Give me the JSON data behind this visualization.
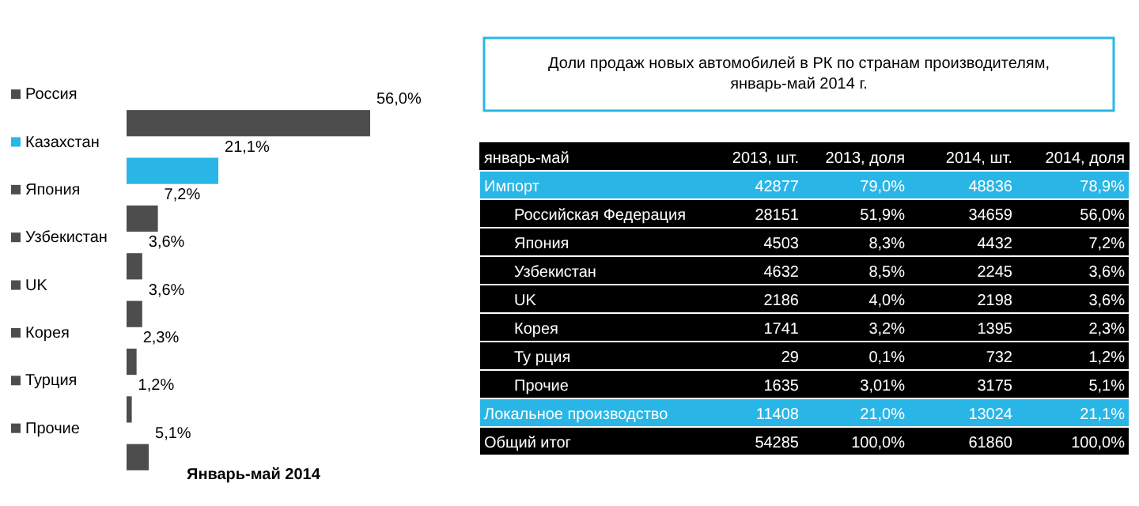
{
  "chart_data": [
    {
      "type": "bar",
      "orientation": "horizontal",
      "categories": [
        "Россия",
        "Казахстан",
        "Япония",
        "Узбекистан",
        "UK",
        "Корея",
        "Турция",
        "Прочие"
      ],
      "values": [
        56.0,
        21.1,
        7.2,
        3.6,
        3.6,
        2.3,
        1.2,
        5.1
      ],
      "colors": [
        "#4d4d4d",
        "#29b6e6",
        "#4d4d4d",
        "#4d4d4d",
        "#4d4d4d",
        "#4d4d4d",
        "#4d4d4d",
        "#4d4d4d"
      ],
      "value_labels": [
        "56,0%",
        "21,1%",
        "7,2%",
        "3,6%",
        "3,6%",
        "2,3%",
        "1,2%",
        "5,1%"
      ],
      "annotations": [
        "Январь-май 2014"
      ]
    },
    {
      "type": "other",
      "title": "Доли продаж  новых  автомобилей в РК по странам производителям, январь-май 2014 г.",
      "categories": [
        "январь-май",
        "2013, шт.",
        "2013, доля",
        "2014, шт.",
        "2014, доля"
      ],
      "y_categories": [
        "Импорт",
        "Российская Федерация",
        "Япония",
        "Узбекистан",
        "UK",
        "Корея",
        "Ту рция",
        "Прочие",
        "Локальное производство",
        "Общий итог"
      ],
      "colors": [
        "#000000",
        "#29b6e6",
        null,
        null,
        null,
        null,
        null,
        null,
        null,
        "#29b6e6",
        "#000000"
      ],
      "cell_labels": [
        [
          "42877",
          "79,0%",
          "48836",
          "78,9%"
        ],
        [
          "28151",
          "51,9%",
          "34659",
          "56,0%"
        ],
        [
          "4503",
          "8,3%",
          "4432",
          "7,2%"
        ],
        [
          "4632",
          "8,5%",
          "2245",
          "3,6%"
        ],
        [
          "2186",
          "4,0%",
          "2198",
          "3,6%"
        ],
        [
          "1741",
          "3,2%",
          "1395",
          "2,3%"
        ],
        [
          "29",
          "0,1%",
          "732",
          "1,2%"
        ],
        [
          "1635",
          "3,01%",
          "3175",
          "5,1%"
        ],
        [
          "11408",
          "21,0%",
          "13024",
          "21,1%"
        ],
        [
          "54285",
          "100,0%",
          "61860",
          "100,0%"
        ]
      ]
    }
  ]
}
